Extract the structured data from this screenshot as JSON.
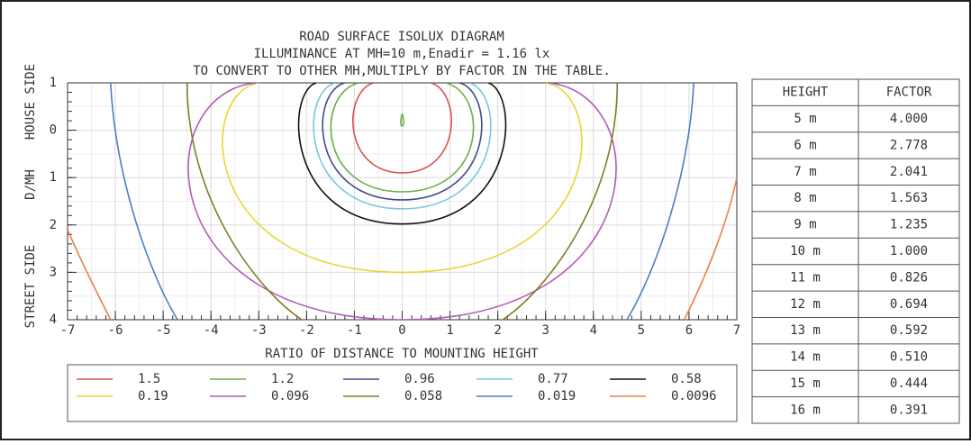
{
  "chart_data": {
    "type": "contour",
    "title": [
      "ROAD SURFACE ISOLUX DIAGRAM",
      "ILLUMINANCE AT MH=10 m,Enadir  = 1.16 lx",
      "TO CONVERT TO OTHER MH,MULTIPLY BY FACTOR IN THE TABLE."
    ],
    "x_label": "RATIO OF DISTANCE TO MOUNTING HEIGHT",
    "y_label": [
      "STREET SIDE",
      "D/MH",
      "HOUSE SIDE"
    ],
    "xlim": [
      -7,
      7
    ],
    "xticks": [
      -7,
      -6,
      -5,
      -4,
      -3,
      -2,
      -1,
      0,
      1,
      2,
      3,
      4,
      5,
      6,
      7
    ],
    "ylim": [
      -1,
      4
    ],
    "yticks": [
      {
        "value": -1,
        "label": "1"
      },
      0,
      1,
      2,
      3,
      4
    ],
    "grid": true,
    "series": [
      {
        "name": "1.5",
        "color": "#d9534f",
        "values": [
          1.5
        ]
      },
      {
        "name": "1.2",
        "color": "#6ab04c",
        "values": [
          1.2
        ]
      },
      {
        "name": "0.96",
        "color": "#3f4a8a",
        "values": [
          0.96
        ]
      },
      {
        "name": "0.77",
        "color": "#7cc6e0",
        "values": [
          0.77
        ]
      },
      {
        "name": "0.58",
        "color": "#111111",
        "values": [
          0.58
        ]
      },
      {
        "name": "0.19",
        "color": "#e8d630",
        "values": [
          0.19
        ]
      },
      {
        "name": "0.096",
        "color": "#b25cb8",
        "values": [
          0.096
        ]
      },
      {
        "name": "0.058",
        "color": "#7f7f2a",
        "values": [
          0.058
        ]
      },
      {
        "name": "0.019",
        "color": "#4a7fc1",
        "values": [
          0.019
        ]
      },
      {
        "name": "0.0096",
        "color": "#e8804a",
        "values": [
          0.0096
        ]
      }
    ]
  },
  "table": {
    "header": [
      "HEIGHT",
      "FACTOR"
    ],
    "rows": [
      [
        "5 m",
        "4.000"
      ],
      [
        "6 m",
        "2.778"
      ],
      [
        "7 m",
        "2.041"
      ],
      [
        "8 m",
        "1.563"
      ],
      [
        "9 m",
        "1.235"
      ],
      [
        "10 m",
        "1.000"
      ],
      [
        "11 m",
        "0.826"
      ],
      [
        "12 m",
        "0.694"
      ],
      [
        "13 m",
        "0.592"
      ],
      [
        "14 m",
        "0.510"
      ],
      [
        "15 m",
        "0.444"
      ],
      [
        "16 m",
        "0.391"
      ]
    ]
  }
}
